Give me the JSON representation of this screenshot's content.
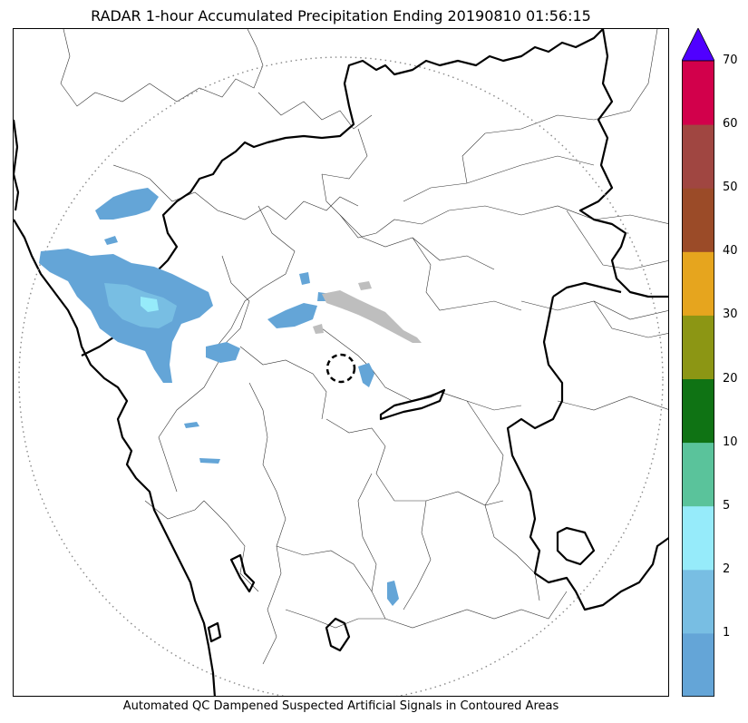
{
  "title": "RADAR 1-hour Accumulated Precipitation Ending 20190810 01:56:15",
  "caption": "Automated QC Dampened Suspected Artificial Signals in Contoured Areas",
  "colorbar": {
    "ticks": [
      "1",
      "2",
      "5",
      "10",
      "20",
      "30",
      "40",
      "50",
      "60",
      "70"
    ],
    "colors": [
      "#64a5d7",
      "#78bee3",
      "#96ebfa",
      "#5ac39b",
      "#0f7314",
      "#8c9614",
      "#e6a51e",
      "#9b4b28",
      "#a04641",
      "#d2004b"
    ],
    "over_color": "#5000ff"
  },
  "map_colors": {
    "rain_light": "#64a5d7",
    "rain_medium": "#78bee3",
    "rain_heavy": "#96ebfa",
    "qc_gray": "#bebebe",
    "range_ring": "#888888"
  }
}
